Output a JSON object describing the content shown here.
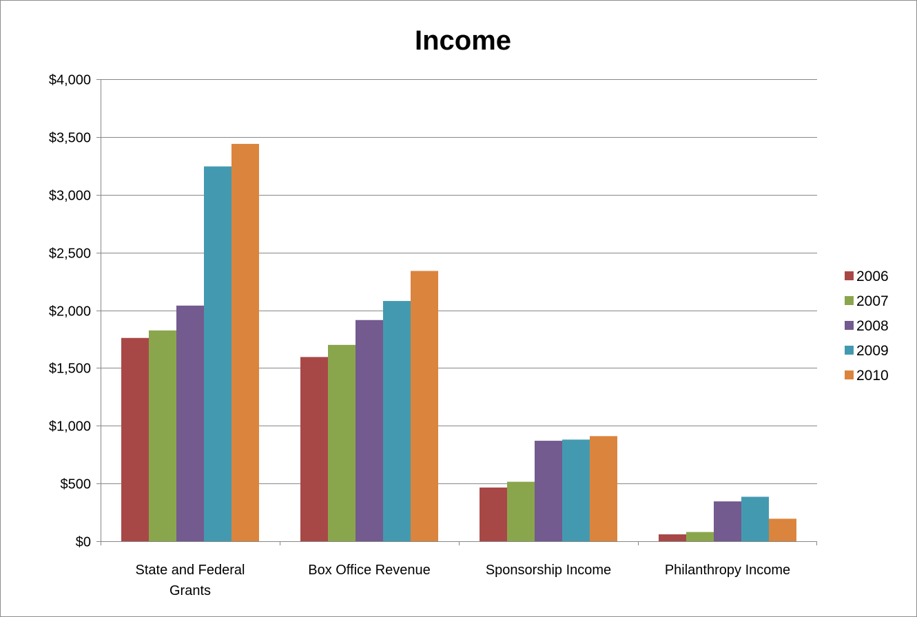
{
  "chart_data": {
    "type": "bar",
    "title": "Income",
    "xlabel": "",
    "ylabel": "",
    "categories": [
      [
        "State and Federal",
        "Grants"
      ],
      [
        "Box Office Revenue"
      ],
      [
        "Sponsorship Income"
      ],
      [
        "Philanthropy Income"
      ]
    ],
    "series": [
      {
        "name": "2006",
        "color": "#A84846",
        "values": [
          1760,
          1595,
          465,
          60
        ]
      },
      {
        "name": "2007",
        "color": "#8AA64D",
        "values": [
          1825,
          1700,
          515,
          80
        ]
      },
      {
        "name": "2008",
        "color": "#735A8F",
        "values": [
          2040,
          1915,
          870,
          345
        ]
      },
      {
        "name": "2009",
        "color": "#439AB0",
        "values": [
          3245,
          2080,
          880,
          385
        ]
      },
      {
        "name": "2010",
        "color": "#DB843D",
        "values": [
          3440,
          2340,
          910,
          195
        ]
      }
    ],
    "ylim": [
      0,
      4000
    ],
    "yticks": [
      0,
      500,
      1000,
      1500,
      2000,
      2500,
      3000,
      3500,
      4000
    ],
    "ytick_labels": [
      "$0",
      "$500",
      "$1,000",
      "$1,500",
      "$2,000",
      "$2,500",
      "$3,000",
      "$3,500",
      "$4,000"
    ],
    "grid": true,
    "legend_position": "right"
  }
}
